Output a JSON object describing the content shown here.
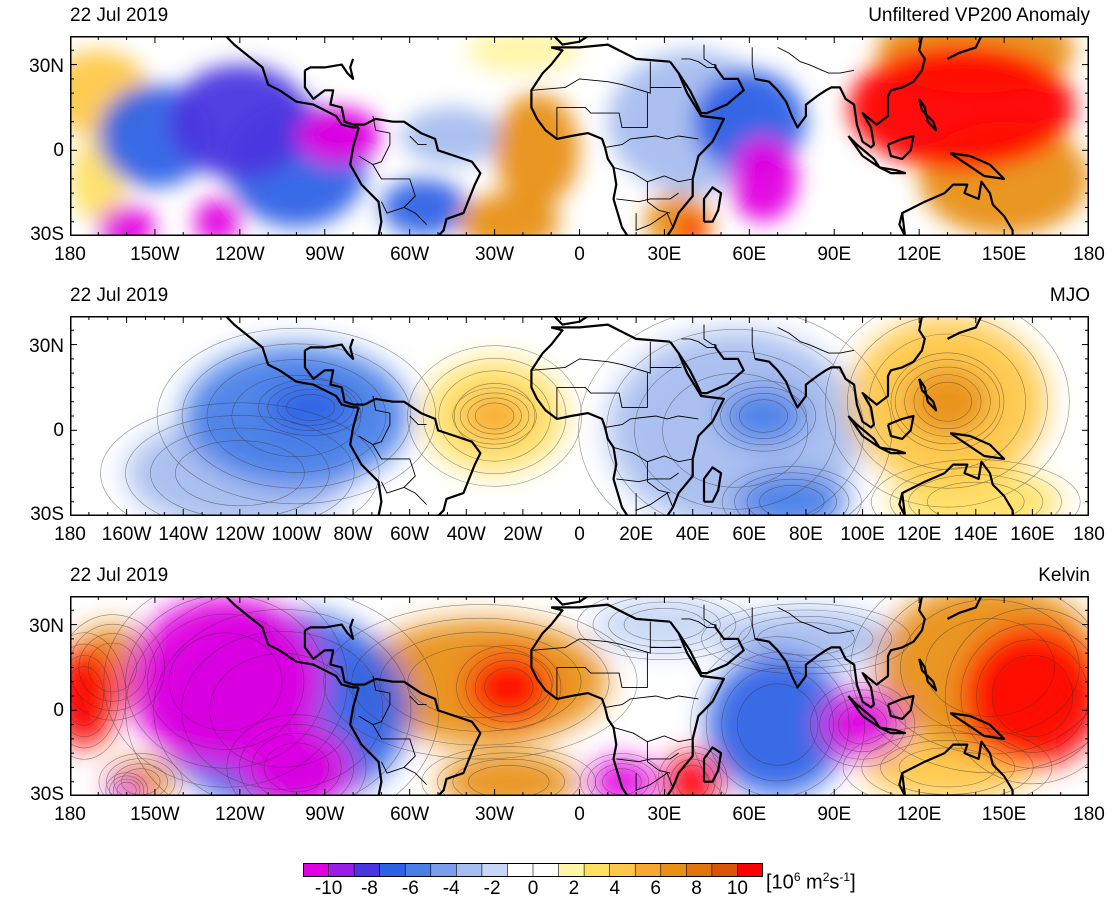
{
  "panels": [
    {
      "date": "22 Jul 2019",
      "title": "Unfiltered VP200 Anomaly",
      "lat_labels": [
        "30N",
        "0",
        "30S"
      ],
      "lon_labels": [
        "180",
        "150W",
        "120W",
        "90W",
        "60W",
        "30W",
        "0",
        "30E",
        "60E",
        "90E",
        "120E",
        "150E",
        "180"
      ],
      "has_contours": false,
      "blobs": [
        {
          "lon": -150,
          "lat": 5,
          "rx": 20,
          "ry": 18,
          "v": -6
        },
        {
          "lon": -120,
          "lat": 10,
          "rx": 25,
          "ry": 20,
          "v": -8
        },
        {
          "lon": -85,
          "lat": 5,
          "rx": 15,
          "ry": 10,
          "v": -10
        },
        {
          "lon": -100,
          "lat": -5,
          "rx": 25,
          "ry": 22,
          "v": -6
        },
        {
          "lon": -160,
          "lat": -27,
          "rx": 10,
          "ry": 8,
          "v": -10
        },
        {
          "lon": -128,
          "lat": -25,
          "rx": 8,
          "ry": 8,
          "v": -10
        },
        {
          "lon": -55,
          "lat": -20,
          "rx": 15,
          "ry": 10,
          "v": -6
        },
        {
          "lon": -45,
          "lat": 5,
          "rx": 18,
          "ry": 10,
          "v": -3
        },
        {
          "lon": -15,
          "lat": 0,
          "rx": 15,
          "ry": 20,
          "v": 6
        },
        {
          "lon": -25,
          "lat": -25,
          "rx": 18,
          "ry": 10,
          "v": 6
        },
        {
          "lon": -170,
          "lat": 20,
          "rx": 18,
          "ry": 15,
          "v": 4
        },
        {
          "lon": -170,
          "lat": -10,
          "rx": 10,
          "ry": 15,
          "v": 3
        },
        {
          "lon": 40,
          "lat": 10,
          "rx": 30,
          "ry": 25,
          "v": -3
        },
        {
          "lon": 65,
          "lat": -10,
          "rx": 12,
          "ry": 15,
          "v": -10
        },
        {
          "lon": 60,
          "lat": 10,
          "rx": 20,
          "ry": 18,
          "v": -7
        },
        {
          "lon": 35,
          "lat": -25,
          "rx": 12,
          "ry": 10,
          "v": 7
        },
        {
          "lon": 40,
          "lat": -28,
          "rx": 5,
          "ry": 5,
          "v": 10
        },
        {
          "lon": 135,
          "lat": 15,
          "rx": 40,
          "ry": 22,
          "v": 10
        },
        {
          "lon": 150,
          "lat": -10,
          "rx": 30,
          "ry": 20,
          "v": 6
        },
        {
          "lon": 140,
          "lat": 35,
          "rx": 35,
          "ry": 15,
          "v": 6
        },
        {
          "lon": -20,
          "lat": 35,
          "rx": 20,
          "ry": 8,
          "v": 2
        }
      ]
    },
    {
      "date": "22 Jul 2019",
      "title": "MJO",
      "lat_labels": [
        "30N",
        "0",
        "30S"
      ],
      "lon_labels": [
        "180",
        "160W",
        "140W",
        "120W",
        "100W",
        "80W",
        "60W",
        "40W",
        "20W",
        "0",
        "20E",
        "40E",
        "60E",
        "80E",
        "100E",
        "120E",
        "140E",
        "160E",
        "180"
      ],
      "has_contours": true,
      "blobs": [
        {
          "lon": -100,
          "lat": 5,
          "rx": 40,
          "ry": 25,
          "v": -5
        },
        {
          "lon": -95,
          "lat": 8,
          "rx": 15,
          "ry": 8,
          "v": -7
        },
        {
          "lon": -120,
          "lat": -15,
          "rx": 40,
          "ry": 20,
          "v": -3
        },
        {
          "lon": -30,
          "lat": 5,
          "rx": 25,
          "ry": 20,
          "v": 3
        },
        {
          "lon": -30,
          "lat": 5,
          "rx": 12,
          "ry": 8,
          "v": 5
        },
        {
          "lon": 55,
          "lat": 0,
          "rx": 45,
          "ry": 35,
          "v": -3
        },
        {
          "lon": 65,
          "lat": 5,
          "rx": 15,
          "ry": 10,
          "v": -5
        },
        {
          "lon": 75,
          "lat": -25,
          "rx": 20,
          "ry": 10,
          "v": -5
        },
        {
          "lon": 130,
          "lat": 10,
          "rx": 35,
          "ry": 30,
          "v": 4
        },
        {
          "lon": 130,
          "lat": 10,
          "rx": 15,
          "ry": 12,
          "v": 6
        },
        {
          "lon": 140,
          "lat": -25,
          "rx": 30,
          "ry": 12,
          "v": 3
        }
      ]
    },
    {
      "date": "22 Jul 2019",
      "title": "Kelvin",
      "lat_labels": [
        "30N",
        "0",
        "30S"
      ],
      "lon_labels": [
        "180",
        "150W",
        "120W",
        "90W",
        "60W",
        "30W",
        "0",
        "30E",
        "60E",
        "90E",
        "120E",
        "150E",
        "180"
      ],
      "has_contours": true,
      "blobs": [
        {
          "lon": -125,
          "lat": 10,
          "rx": 35,
          "ry": 30,
          "v": -10
        },
        {
          "lon": -100,
          "lat": -20,
          "rx": 20,
          "ry": 15,
          "v": -10
        },
        {
          "lon": -105,
          "lat": 0,
          "rx": 45,
          "ry": 35,
          "v": -7
        },
        {
          "lon": -175,
          "lat": 5,
          "rx": 12,
          "ry": 18,
          "v": 10
        },
        {
          "lon": -165,
          "lat": 15,
          "rx": 15,
          "ry": 15,
          "v": 6
        },
        {
          "lon": -155,
          "lat": -25,
          "rx": 12,
          "ry": 8,
          "v": 6
        },
        {
          "lon": -160,
          "lat": -28,
          "rx": 6,
          "ry": 5,
          "v": -10
        },
        {
          "lon": -35,
          "lat": 10,
          "rx": 45,
          "ry": 22,
          "v": 6
        },
        {
          "lon": -25,
          "lat": 8,
          "rx": 15,
          "ry": 12,
          "v": 10
        },
        {
          "lon": -25,
          "lat": -25,
          "rx": 25,
          "ry": 10,
          "v": 7
        },
        {
          "lon": 15,
          "lat": -25,
          "rx": 12,
          "ry": 8,
          "v": -10
        },
        {
          "lon": 40,
          "lat": -25,
          "rx": 10,
          "ry": 10,
          "v": 10
        },
        {
          "lon": 70,
          "lat": -5,
          "rx": 25,
          "ry": 25,
          "v": -6
        },
        {
          "lon": 100,
          "lat": -5,
          "rx": 15,
          "ry": 12,
          "v": -10
        },
        {
          "lon": 80,
          "lat": 25,
          "rx": 30,
          "ry": 10,
          "v": -3
        },
        {
          "lon": 30,
          "lat": 30,
          "rx": 25,
          "ry": 10,
          "v": -2
        },
        {
          "lon": 160,
          "lat": 5,
          "rx": 25,
          "ry": 25,
          "v": 10
        },
        {
          "lon": 145,
          "lat": 15,
          "rx": 40,
          "ry": 30,
          "v": 6
        },
        {
          "lon": 130,
          "lat": -20,
          "rx": 30,
          "ry": 12,
          "v": 4
        }
      ]
    }
  ],
  "colorbar": {
    "labels": [
      "-10",
      "-8",
      "-6",
      "-4",
      "-2",
      "0",
      "2",
      "4",
      "6",
      "8",
      "10"
    ],
    "colors": [
      "#e100e1",
      "#9a1de8",
      "#4a35e0",
      "#2e62e6",
      "#4a7fe8",
      "#7c9cec",
      "#a6bdef",
      "#c7d7f5",
      "#ffffff",
      "#ffffff",
      "#fff6a6",
      "#ffe066",
      "#ffc84a",
      "#f8a830",
      "#e89018",
      "#e07410",
      "#d95408",
      "#ff0000"
    ],
    "unit_text": "[10",
    "unit_exp1": "6",
    "unit_mid": " m",
    "unit_exp2": "2",
    "unit_mid2": "s",
    "unit_exp3": "-1",
    "unit_end": "]"
  }
}
